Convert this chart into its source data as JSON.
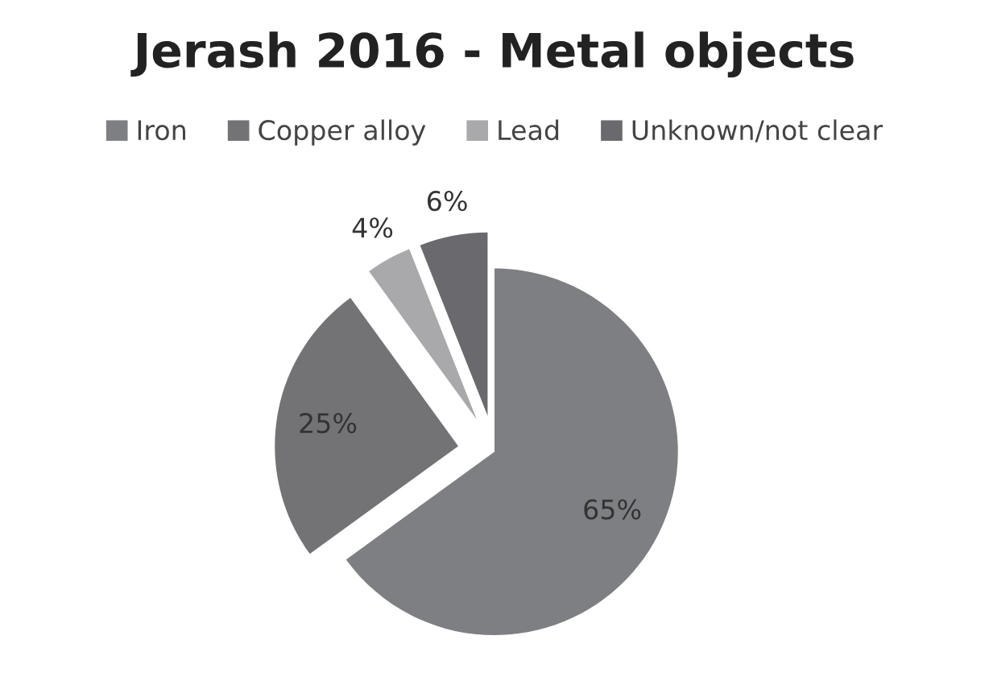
{
  "chart_data": {
    "type": "pie",
    "title": "Jerash 2016 - Metal objects",
    "categories": [
      "Iron",
      "Copper alloy",
      "Lead",
      "Unknown/not clear"
    ],
    "values": [
      65,
      25,
      4,
      6
    ],
    "colors": [
      "#7e7f83",
      "#737376",
      "#a9a9ac",
      "#6a6a6e"
    ],
    "data_labels": true,
    "value_labels": [
      "65%",
      "25%",
      "4%",
      "6%"
    ],
    "legend": "top"
  }
}
